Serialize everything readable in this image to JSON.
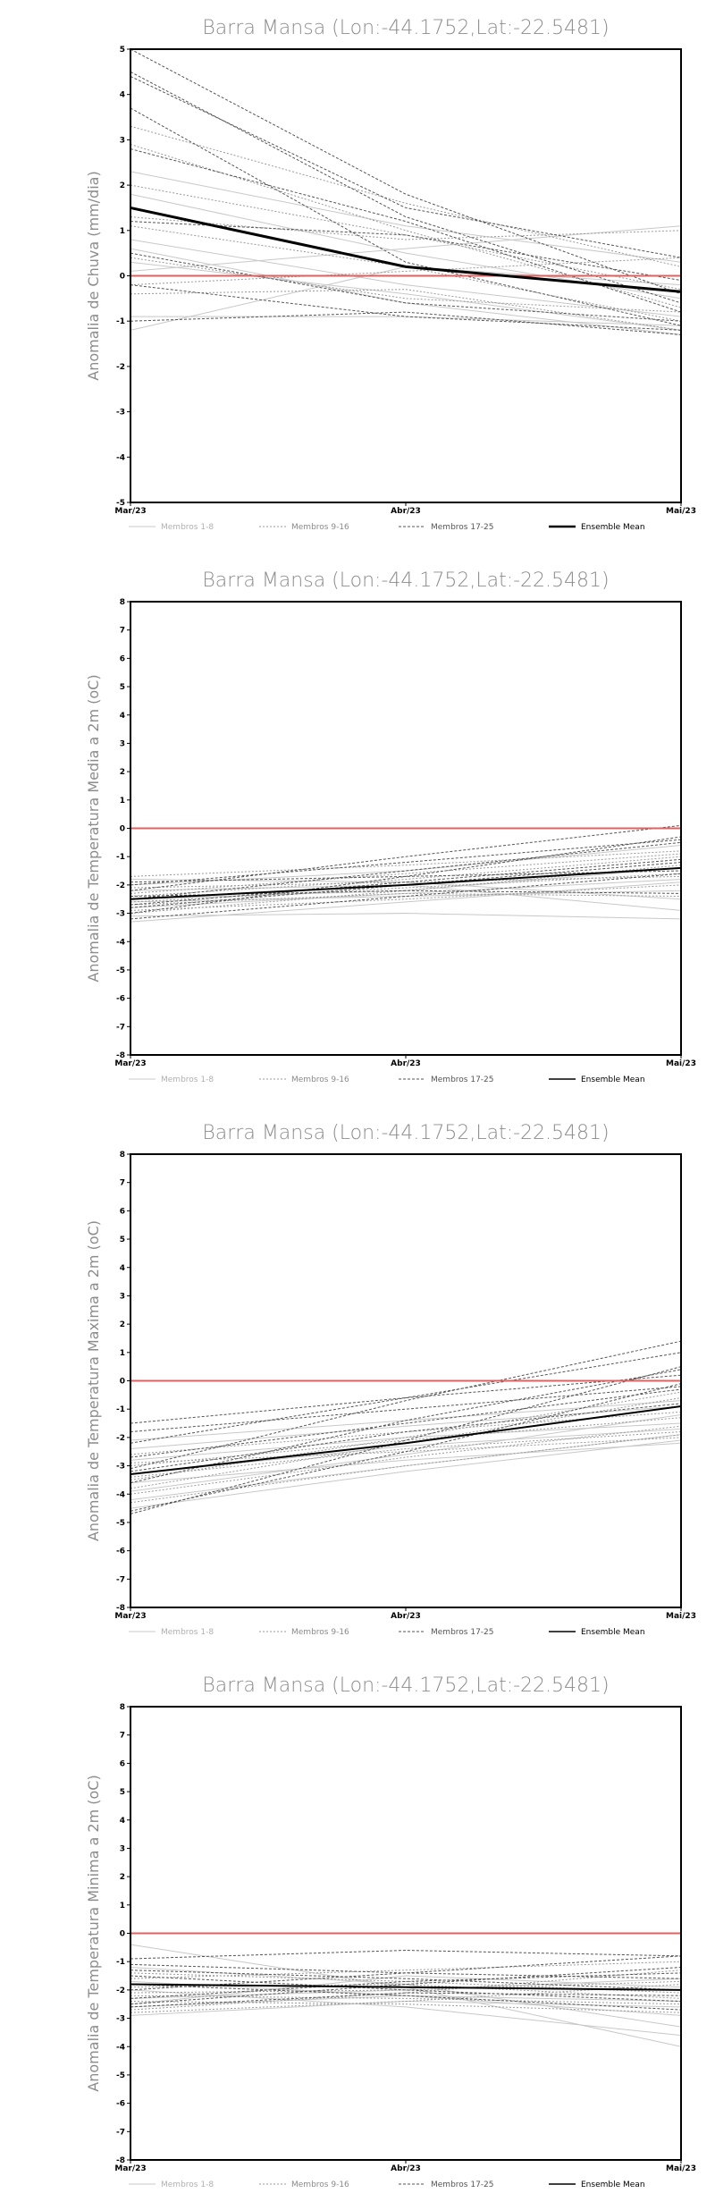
{
  "chart_data": [
    {
      "type": "line",
      "title": "Barra Mansa (Lon:-44.1752,Lat:-22.5481)",
      "ylabel": "Anomalia de Chuva (mm/dia)",
      "categories": [
        "Mar/23",
        "Abr/23",
        "Mai/23"
      ],
      "ylim": [
        -5,
        5
      ],
      "yticks": [
        -5,
        -4,
        -3,
        -2,
        -1,
        0,
        1,
        2,
        3,
        4,
        5
      ],
      "reference_line": 0,
      "legend": [
        "Membros 1-8",
        "Membros 9-16",
        "Membros 17-25",
        "Ensemble Mean"
      ],
      "members": [
        {
          "group": 1,
          "values": [
            0.3,
            -0.4,
            -1.2
          ]
        },
        {
          "group": 1,
          "values": [
            0.8,
            -0.2,
            -0.9
          ]
        },
        {
          "group": 1,
          "values": [
            -0.9,
            -0.9,
            -1.1
          ]
        },
        {
          "group": 1,
          "values": [
            1.8,
            0.5,
            -0.5
          ]
        },
        {
          "group": 1,
          "values": [
            0.1,
            0.6,
            1.1
          ]
        },
        {
          "group": 1,
          "values": [
            -1.2,
            0.2,
            -0.2
          ]
        },
        {
          "group": 1,
          "values": [
            0.6,
            -0.6,
            -1.3
          ]
        },
        {
          "group": 1,
          "values": [
            2.3,
            1.1,
            0.3
          ]
        },
        {
          "group": 2,
          "values": [
            2.0,
            0.9,
            -0.3
          ]
        },
        {
          "group": 2,
          "values": [
            0.4,
            -0.5,
            -0.8
          ]
        },
        {
          "group": 2,
          "values": [
            1.3,
            0.8,
            1.0
          ]
        },
        {
          "group": 2,
          "values": [
            -0.4,
            -0.3,
            -1.2
          ]
        },
        {
          "group": 2,
          "values": [
            2.9,
            1.0,
            -0.7
          ]
        },
        {
          "group": 2,
          "values": [
            -0.2,
            0.1,
            0.4
          ]
        },
        {
          "group": 2,
          "values": [
            1.1,
            0.2,
            -1.0
          ]
        },
        {
          "group": 2,
          "values": [
            3.3,
            1.6,
            0.2
          ]
        },
        {
          "group": 3,
          "values": [
            5.0,
            1.8,
            -0.4
          ]
        },
        {
          "group": 3,
          "values": [
            4.5,
            1.3,
            -0.6
          ]
        },
        {
          "group": 3,
          "values": [
            4.4,
            1.5,
            0.4
          ]
        },
        {
          "group": 3,
          "values": [
            3.7,
            0.3,
            -1.1
          ]
        },
        {
          "group": 3,
          "values": [
            2.8,
            1.2,
            -0.8
          ]
        },
        {
          "group": 3,
          "values": [
            -0.2,
            -0.9,
            -1.2
          ]
        },
        {
          "group": 3,
          "values": [
            0.5,
            -0.6,
            -1.0
          ]
        },
        {
          "group": 3,
          "values": [
            -1.0,
            -0.8,
            -1.3
          ]
        },
        {
          "group": 3,
          "values": [
            1.2,
            0.9,
            -0.1
          ]
        }
      ],
      "ensemble_mean": [
        1.5,
        0.2,
        -0.35
      ]
    },
    {
      "type": "line",
      "title": "Barra Mansa (Lon:-44.1752,Lat:-22.5481)",
      "ylabel": "Anomalia de Temperatura Media a 2m (oC)",
      "categories": [
        "Mar/23",
        "Abr/23",
        "Mai/23"
      ],
      "ylim": [
        -8,
        8
      ],
      "yticks": [
        -8,
        -7,
        -6,
        -5,
        -4,
        -3,
        -2,
        -1,
        0,
        1,
        2,
        3,
        4,
        5,
        6,
        7,
        8
      ],
      "reference_line": 0,
      "legend": [
        "Membros 1-8",
        "Membros 9-16",
        "Membros 17-25",
        "Ensemble Mean"
      ],
      "members": [
        {
          "group": 1,
          "values": [
            -3.1,
            -3.0,
            -3.2
          ]
        },
        {
          "group": 1,
          "values": [
            -2.8,
            -2.3,
            -1.8
          ]
        },
        {
          "group": 1,
          "values": [
            -1.8,
            -1.9,
            -2.5
          ]
        },
        {
          "group": 1,
          "values": [
            -2.2,
            -2.0,
            -2.9
          ]
        },
        {
          "group": 1,
          "values": [
            -2.5,
            -2.2,
            -1.4
          ]
        },
        {
          "group": 1,
          "values": [
            -2.0,
            -1.5,
            -0.6
          ]
        },
        {
          "group": 1,
          "values": [
            -3.3,
            -2.6,
            -1.9
          ]
        },
        {
          "group": 1,
          "values": [
            -2.6,
            -2.4,
            -2.2
          ]
        },
        {
          "group": 2,
          "values": [
            -2.4,
            -1.8,
            -1.0
          ]
        },
        {
          "group": 2,
          "values": [
            -2.9,
            -2.5,
            -2.0
          ]
        },
        {
          "group": 2,
          "values": [
            -1.7,
            -1.3,
            -0.8
          ]
        },
        {
          "group": 2,
          "values": [
            -2.6,
            -2.1,
            -1.6
          ]
        },
        {
          "group": 2,
          "values": [
            -3.0,
            -2.2,
            -1.3
          ]
        },
        {
          "group": 2,
          "values": [
            -2.1,
            -1.9,
            -1.7
          ]
        },
        {
          "group": 2,
          "values": [
            -2.7,
            -2.3,
            -2.4
          ]
        },
        {
          "group": 2,
          "values": [
            -2.3,
            -1.6,
            -0.9
          ]
        },
        {
          "group": 3,
          "values": [
            -2.5,
            -1.5,
            -0.5
          ]
        },
        {
          "group": 3,
          "values": [
            -3.0,
            -1.7,
            -0.3
          ]
        },
        {
          "group": 3,
          "values": [
            -2.2,
            -1.0,
            0.1
          ]
        },
        {
          "group": 3,
          "values": [
            -2.8,
            -2.0,
            -1.2
          ]
        },
        {
          "group": 3,
          "values": [
            -2.4,
            -2.2,
            -2.3
          ]
        },
        {
          "group": 3,
          "values": [
            -1.9,
            -1.7,
            -1.5
          ]
        },
        {
          "group": 3,
          "values": [
            -3.2,
            -2.4,
            -1.6
          ]
        },
        {
          "group": 3,
          "values": [
            -2.7,
            -1.9,
            -1.1
          ]
        },
        {
          "group": 3,
          "values": [
            -2.0,
            -1.2,
            -0.4
          ]
        }
      ],
      "ensemble_mean": [
        -2.5,
        -2.0,
        -1.4
      ]
    },
    {
      "type": "line",
      "title": "Barra Mansa (Lon:-44.1752,Lat:-22.5481)",
      "ylabel": "Anomalia de Temperatura Maxima a 2m (oC)",
      "categories": [
        "Mar/23",
        "Abr/23",
        "Mai/23"
      ],
      "ylim": [
        -8,
        8
      ],
      "yticks": [
        -8,
        -7,
        -6,
        -5,
        -4,
        -3,
        -2,
        -1,
        0,
        1,
        2,
        3,
        4,
        5,
        6,
        7,
        8
      ],
      "reference_line": 0,
      "legend": [
        "Membros 1-8",
        "Membros 9-16",
        "Membros 17-25",
        "Ensemble Mean"
      ],
      "members": [
        {
          "group": 1,
          "values": [
            -4.2,
            -3.0,
            -1.9
          ]
        },
        {
          "group": 1,
          "values": [
            -3.6,
            -2.8,
            -2.2
          ]
        },
        {
          "group": 1,
          "values": [
            -2.8,
            -2.0,
            -1.5
          ]
        },
        {
          "group": 1,
          "values": [
            -3.9,
            -2.6,
            -1.2
          ]
        },
        {
          "group": 1,
          "values": [
            -2.4,
            -1.6,
            -0.9
          ]
        },
        {
          "group": 1,
          "values": [
            -4.5,
            -3.2,
            -2.1
          ]
        },
        {
          "group": 1,
          "values": [
            -3.3,
            -2.3,
            -1.7
          ]
        },
        {
          "group": 1,
          "values": [
            -2.1,
            -1.4,
            -0.7
          ]
        },
        {
          "group": 2,
          "values": [
            -3.0,
            -2.1,
            -1.3
          ]
        },
        {
          "group": 2,
          "values": [
            -4.0,
            -2.7,
            -1.6
          ]
        },
        {
          "group": 2,
          "values": [
            -2.6,
            -1.8,
            -1.1
          ]
        },
        {
          "group": 2,
          "values": [
            -3.4,
            -2.4,
            -1.8
          ]
        },
        {
          "group": 2,
          "values": [
            -3.8,
            -2.2,
            -0.6
          ]
        },
        {
          "group": 2,
          "values": [
            -2.9,
            -2.5,
            -2.0
          ]
        },
        {
          "group": 2,
          "values": [
            -3.5,
            -2.0,
            -0.4
          ]
        },
        {
          "group": 2,
          "values": [
            -4.3,
            -3.0,
            -1.9
          ]
        },
        {
          "group": 3,
          "values": [
            -1.5,
            -0.6,
            0.2
          ]
        },
        {
          "group": 3,
          "values": [
            -2.2,
            -0.6,
            1.0
          ]
        },
        {
          "group": 3,
          "values": [
            -3.1,
            -0.7,
            1.4
          ]
        },
        {
          "group": 3,
          "values": [
            -4.7,
            -2.1,
            0.5
          ]
        },
        {
          "group": 3,
          "values": [
            -3.6,
            -1.4,
            0.4
          ]
        },
        {
          "group": 3,
          "values": [
            -2.7,
            -1.5,
            -0.3
          ]
        },
        {
          "group": 3,
          "values": [
            -4.6,
            -2.5,
            -0.1
          ]
        },
        {
          "group": 3,
          "values": [
            -3.2,
            -1.8,
            -0.8
          ]
        },
        {
          "group": 3,
          "values": [
            -1.8,
            -1.0,
            -0.2
          ]
        }
      ],
      "ensemble_mean": [
        -3.3,
        -2.2,
        -0.9
      ]
    },
    {
      "type": "line",
      "title": "Barra Mansa (Lon:-44.1752,Lat:-22.5481)",
      "ylabel": "Anomalia de Temperatura Minima a 2m (oC)",
      "categories": [
        "Mar/23",
        "Abr/23",
        "Mai/23"
      ],
      "ylim": [
        -8,
        8
      ],
      "yticks": [
        -8,
        -7,
        -6,
        -5,
        -4,
        -3,
        -2,
        -1,
        0,
        1,
        2,
        3,
        4,
        5,
        6,
        7,
        8
      ],
      "reference_line": 0,
      "legend": [
        "Membros 1-8",
        "Membros 9-16",
        "Membros 17-25",
        "Ensemble Mean"
      ],
      "members": [
        {
          "group": 1,
          "values": [
            -0.4,
            -1.9,
            -4.0
          ]
        },
        {
          "group": 1,
          "values": [
            -2.6,
            -2.2,
            -2.9
          ]
        },
        {
          "group": 1,
          "values": [
            -1.2,
            -1.8,
            -3.3
          ]
        },
        {
          "group": 1,
          "values": [
            -2.3,
            -2.0,
            -1.6
          ]
        },
        {
          "group": 1,
          "values": [
            -2.9,
            -2.4,
            -2.6
          ]
        },
        {
          "group": 1,
          "values": [
            -1.7,
            -2.2,
            -2.4
          ]
        },
        {
          "group": 1,
          "values": [
            -2.5,
            -1.5,
            -1.9
          ]
        },
        {
          "group": 1,
          "values": [
            -2.0,
            -2.6,
            -3.6
          ]
        },
        {
          "group": 2,
          "values": [
            -1.4,
            -1.7,
            -2.1
          ]
        },
        {
          "group": 2,
          "values": [
            -2.1,
            -2.0,
            -1.7
          ]
        },
        {
          "group": 2,
          "values": [
            -2.7,
            -2.1,
            -1.3
          ]
        },
        {
          "group": 2,
          "values": [
            -1.9,
            -1.8,
            -2.3
          ]
        },
        {
          "group": 2,
          "values": [
            -2.4,
            -2.5,
            -2.8
          ]
        },
        {
          "group": 2,
          "values": [
            -1.6,
            -1.3,
            -1.0
          ]
        },
        {
          "group": 2,
          "values": [
            -2.2,
            -2.3,
            -2.5
          ]
        },
        {
          "group": 2,
          "values": [
            -2.8,
            -2.4,
            -1.8
          ]
        },
        {
          "group": 3,
          "values": [
            -0.9,
            -0.6,
            -0.8
          ]
        },
        {
          "group": 3,
          "values": [
            -2.5,
            -1.8,
            -1.2
          ]
        },
        {
          "group": 3,
          "values": [
            -1.3,
            -1.6,
            -2.0
          ]
        },
        {
          "group": 3,
          "values": [
            -2.0,
            -1.4,
            -0.8
          ]
        },
        {
          "group": 3,
          "values": [
            -1.8,
            -2.2,
            -2.7
          ]
        },
        {
          "group": 3,
          "values": [
            -2.3,
            -1.7,
            -1.4
          ]
        },
        {
          "group": 3,
          "values": [
            -1.5,
            -2.0,
            -2.4
          ]
        },
        {
          "group": 3,
          "values": [
            -2.6,
            -2.1,
            -2.2
          ]
        },
        {
          "group": 3,
          "values": [
            -1.1,
            -1.4,
            -1.6
          ]
        }
      ],
      "ensemble_mean": [
        -1.8,
        -1.9,
        -2.0
      ]
    }
  ]
}
